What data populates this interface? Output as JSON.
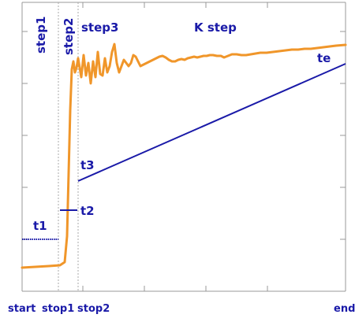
{
  "labels": {
    "step1": "step1",
    "step2": "step2",
    "step3": "step3",
    "k_step": "K step",
    "t1": "t1",
    "t2": "t2",
    "t3": "t3",
    "te": "te"
  },
  "axis_labels": {
    "start": "start",
    "stop1": "stop1",
    "stop2": "stop2",
    "end": "end"
  },
  "colors": {
    "curve": "#f0962a",
    "time_lines": "#1a1aa8",
    "frame": "#999999",
    "markers": "#aaaaaa"
  }
}
